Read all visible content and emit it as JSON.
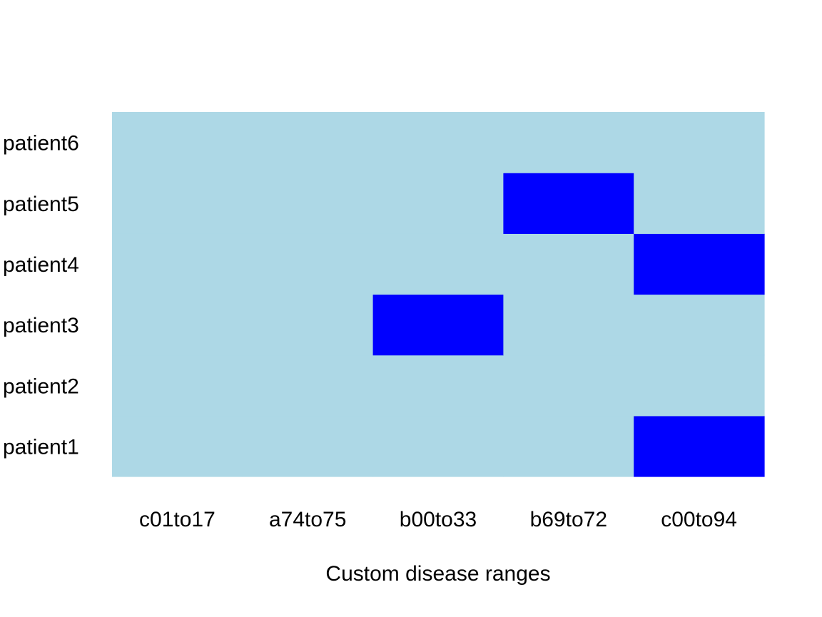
{
  "chart_data": {
    "type": "heatmap",
    "title": "",
    "xlabel": "Custom disease ranges",
    "ylabel": "",
    "x_categories": [
      "c01to17",
      "a74to75",
      "b00to33",
      "b69to72",
      "c00to94"
    ],
    "y_categories": [
      "patient1",
      "patient2",
      "patient3",
      "patient4",
      "patient5",
      "patient6"
    ],
    "values": [
      [
        0,
        0,
        0,
        0,
        1
      ],
      [
        0,
        0,
        0,
        0,
        0
      ],
      [
        0,
        0,
        1,
        0,
        0
      ],
      [
        0,
        0,
        0,
        0,
        1
      ],
      [
        0,
        0,
        0,
        1,
        0
      ],
      [
        0,
        0,
        0,
        0,
        0
      ]
    ],
    "colors": {
      "0": "#add8e6",
      "1": "#0000ff"
    },
    "grid": false,
    "legend": "none"
  }
}
